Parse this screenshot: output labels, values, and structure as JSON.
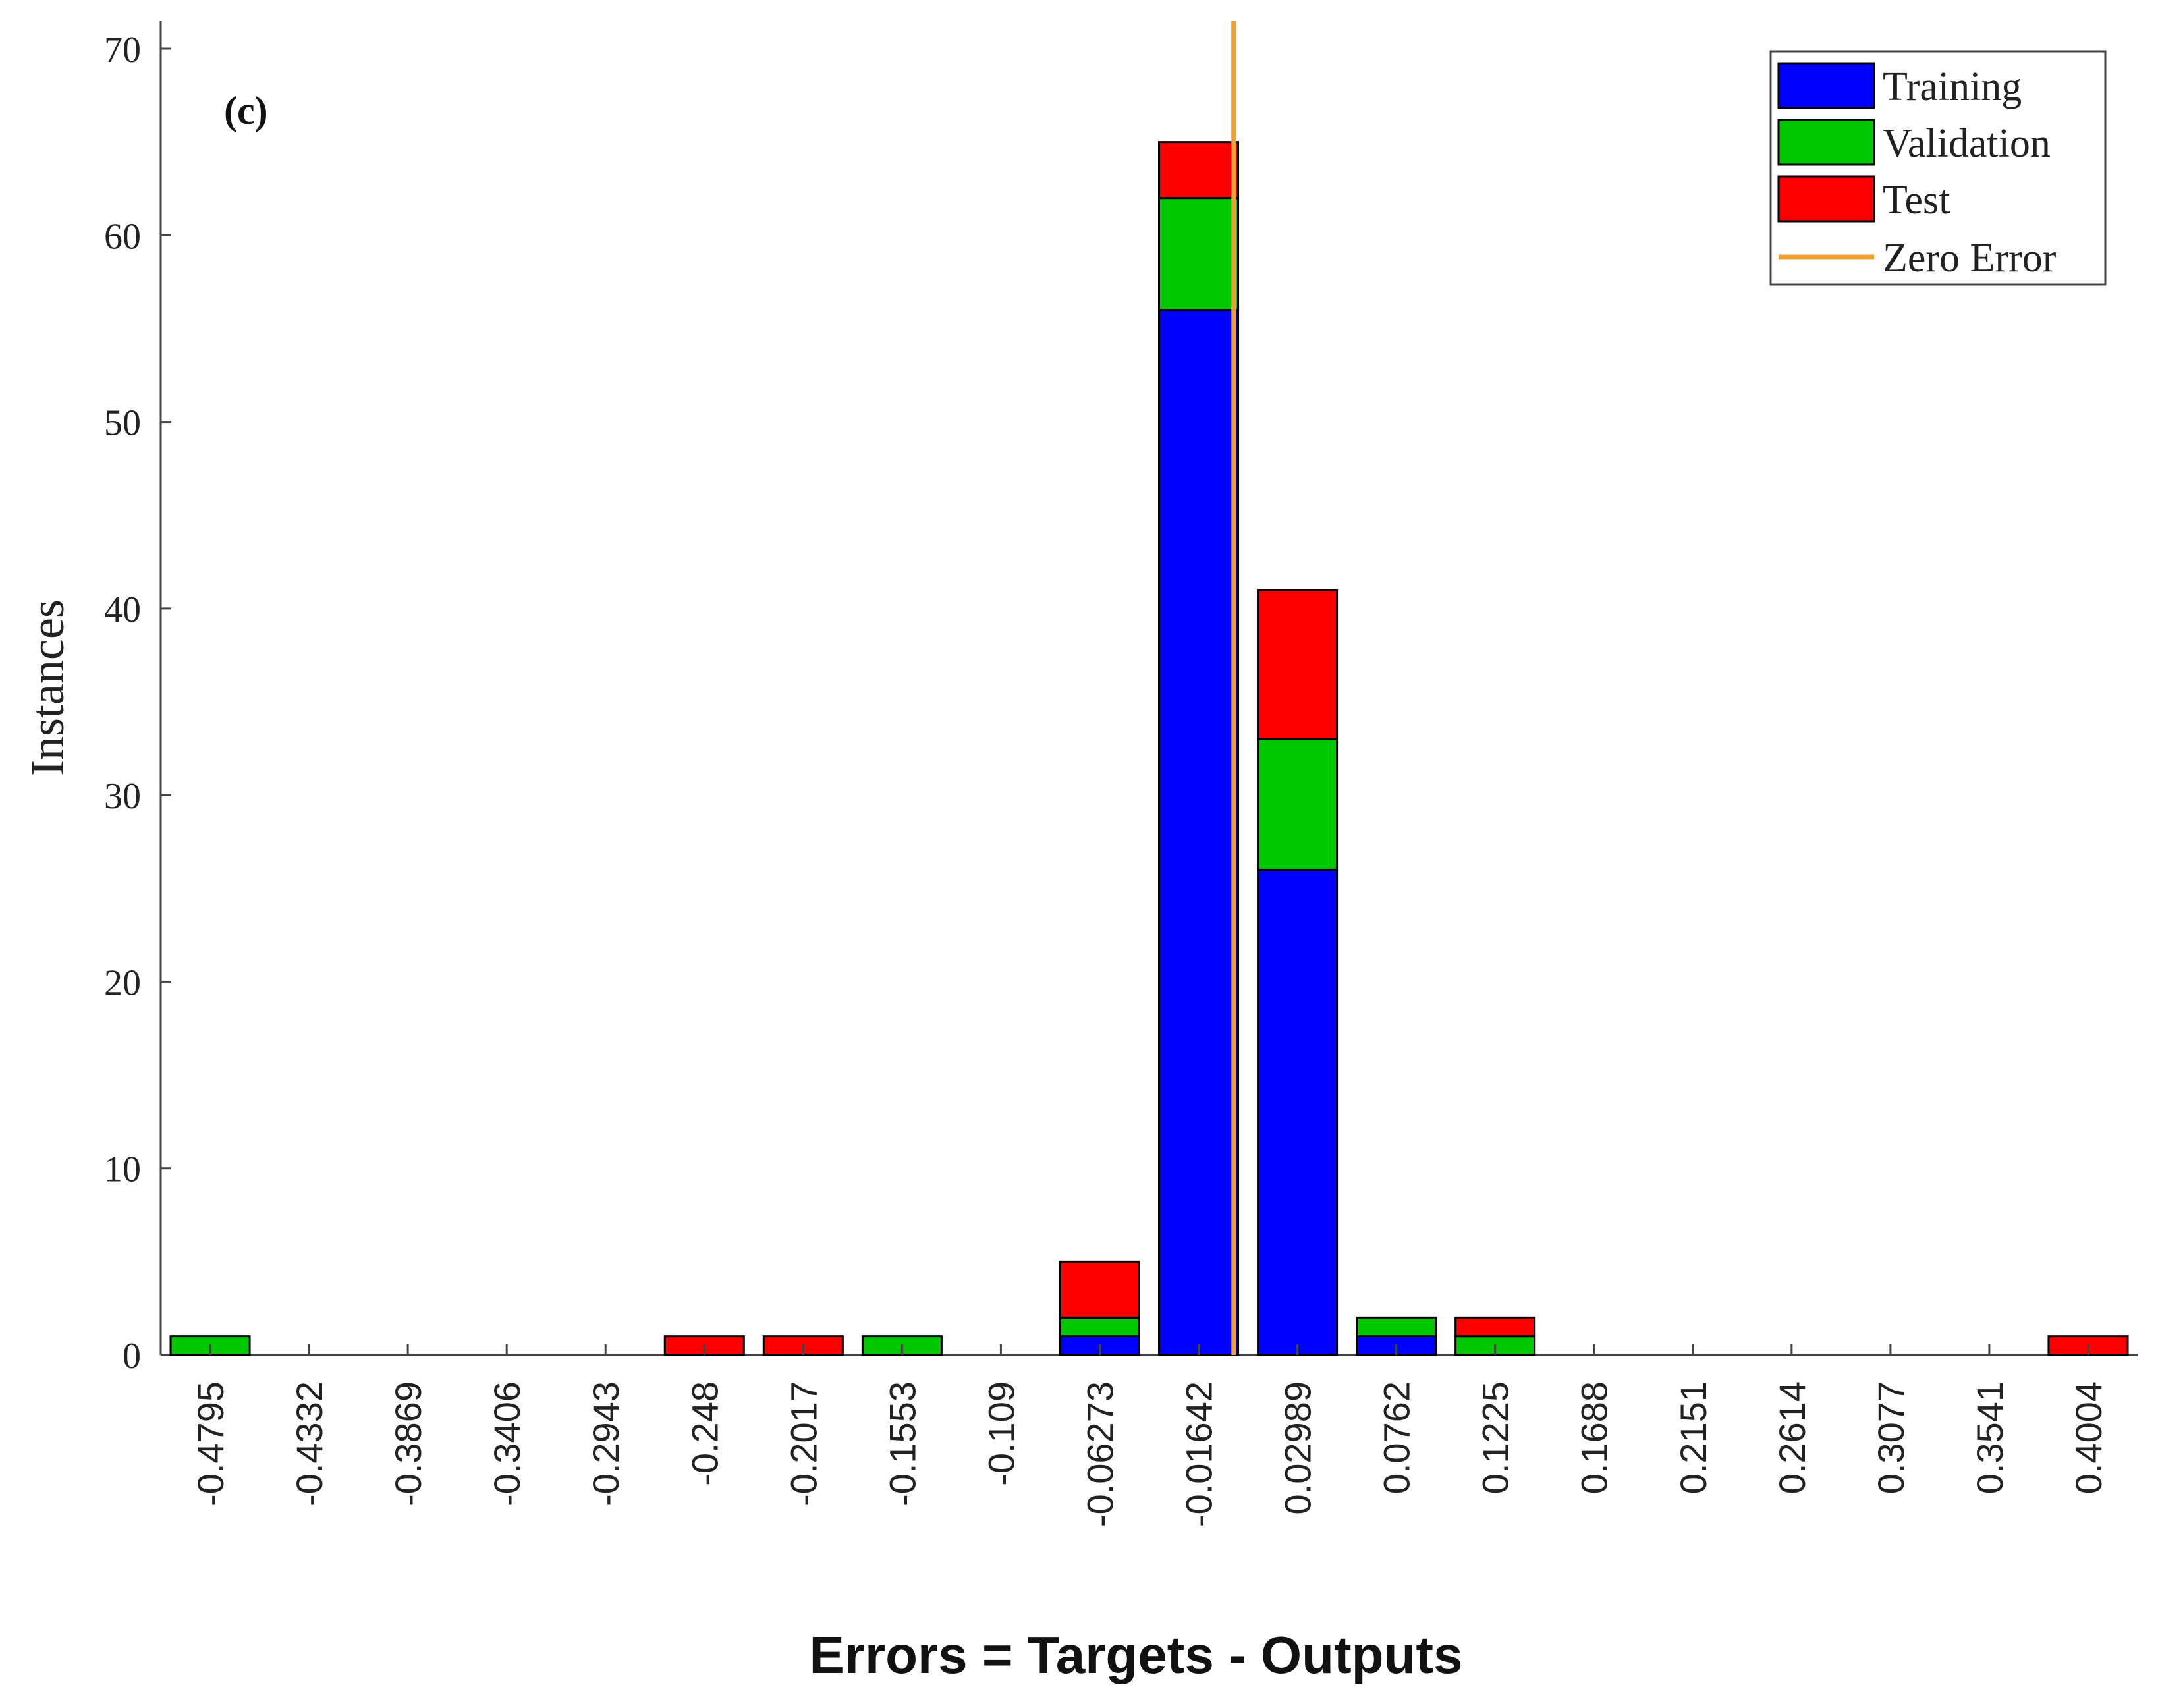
{
  "chart_data": {
    "type": "bar",
    "stacked": true,
    "panel_label": "(c)",
    "xlabel": "Errors = Targets - Outputs",
    "ylabel": "Instances",
    "ylim": [
      0,
      70
    ],
    "yticks": [
      0,
      10,
      20,
      30,
      40,
      50,
      60,
      70
    ],
    "categories": [
      "-0.4795",
      "-0.4332",
      "-0.3869",
      "-0.3406",
      "-0.2943",
      "-0.248",
      "-0.2017",
      "-0.1553",
      "-0.109",
      "-0.06273",
      "-0.01642",
      "0.02989",
      "0.0762",
      "0.1225",
      "0.1688",
      "0.2151",
      "0.2614",
      "0.3077",
      "0.3541",
      "0.4004"
    ],
    "series": [
      {
        "name": "Training",
        "color": "#0000ff",
        "values": [
          0,
          0,
          0,
          0,
          0,
          0,
          0,
          0,
          0,
          1,
          56,
          26,
          1,
          0,
          0,
          0,
          0,
          0,
          0,
          0
        ]
      },
      {
        "name": "Validation",
        "color": "#00c800",
        "values": [
          1,
          0,
          0,
          0,
          0,
          0,
          0,
          1,
          0,
          1,
          6,
          7,
          1,
          1,
          0,
          0,
          0,
          0,
          0,
          0
        ]
      },
      {
        "name": "Test",
        "color": "#ff0000",
        "values": [
          0,
          0,
          0,
          0,
          0,
          1,
          1,
          0,
          0,
          3,
          3,
          8,
          0,
          1,
          0,
          0,
          0,
          0,
          0,
          1
        ]
      }
    ],
    "zero_error": {
      "name": "Zero Error",
      "color": "#f0a030"
    },
    "legend_position": "top-right",
    "grid": false
  }
}
